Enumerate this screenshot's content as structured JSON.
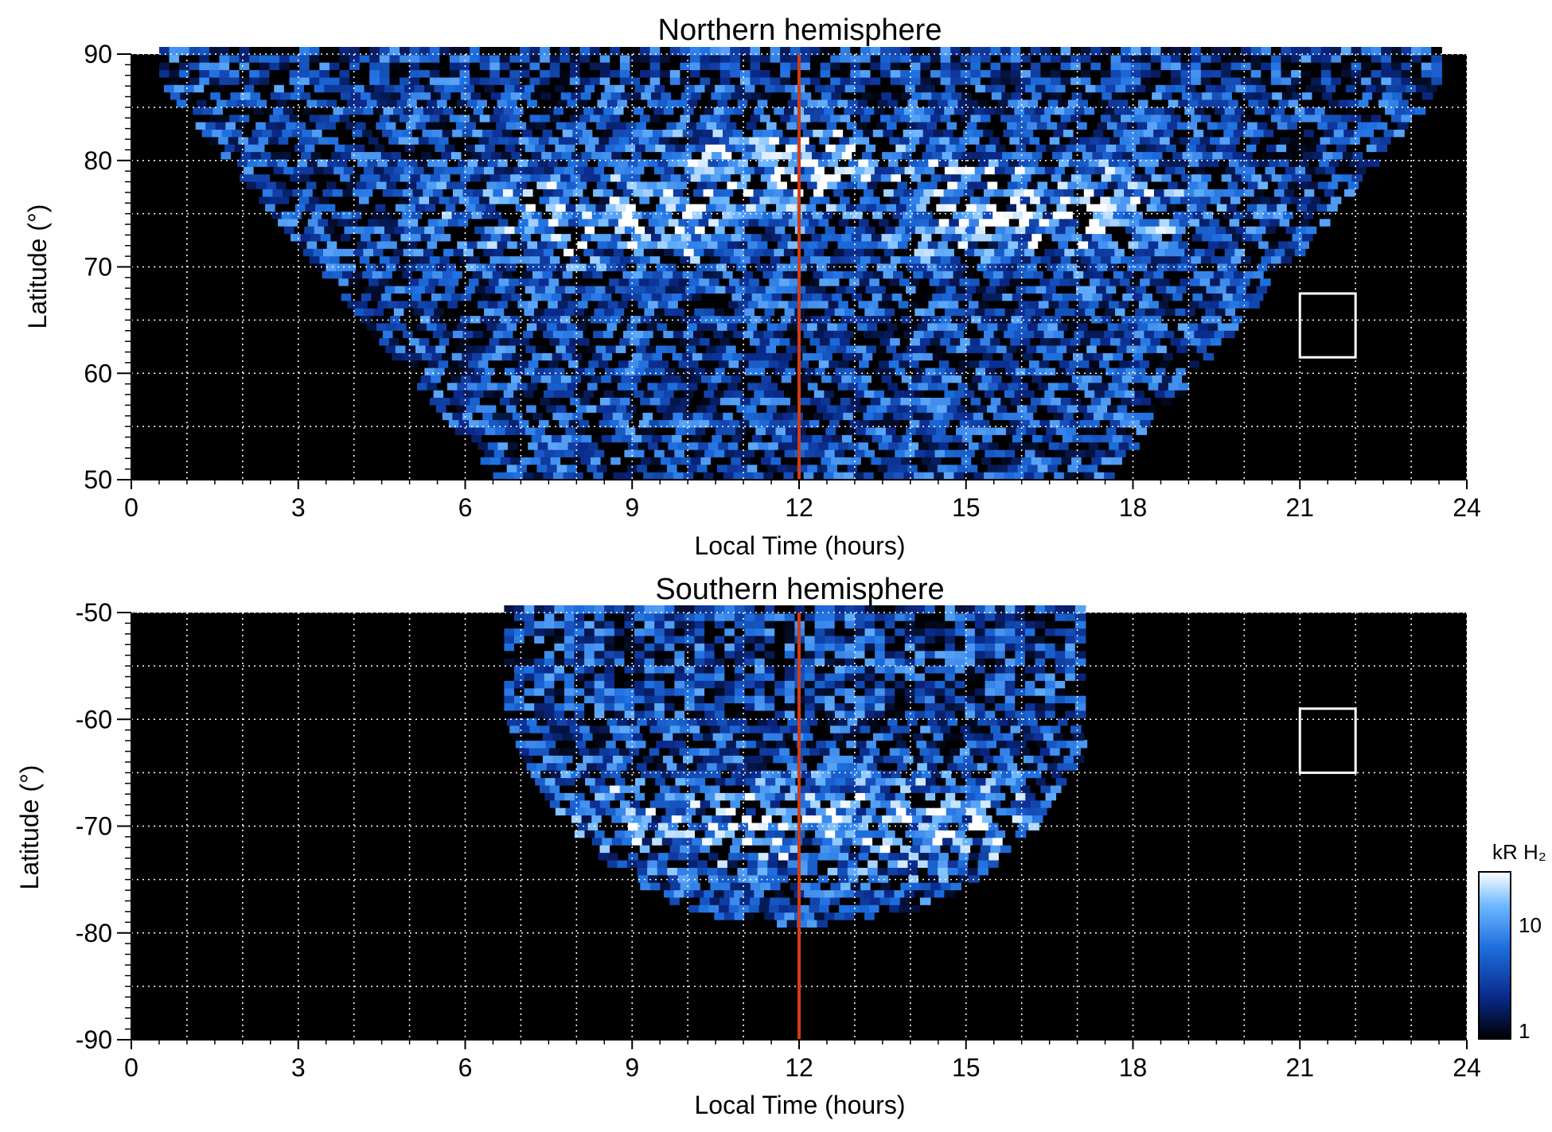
{
  "chart_data": [
    {
      "type": "heatmap",
      "title": "Northern hemisphere",
      "xlabel": "Local Time (hours)",
      "ylabel": "Latitude (°)",
      "xlim": [
        0,
        24
      ],
      "ylim": [
        50,
        90
      ],
      "x_ticks": [
        0,
        3,
        6,
        9,
        12,
        15,
        18,
        21,
        24
      ],
      "y_ticks": [
        50,
        60,
        70,
        80,
        90
      ],
      "grid": true,
      "colormap": [
        "#000000",
        "#0a2a8a",
        "#1e6fe0",
        "#6fb8ff",
        "#ffffff"
      ],
      "noon_line": {
        "x": 12,
        "color": "#d23c14"
      },
      "highlight_box": {
        "x": [
          21,
          22
        ],
        "lat": [
          61.5,
          67.5
        ],
        "color": "#ffffff"
      },
      "coverage_lt": [
        0.5,
        23.5
      ],
      "bright_bands": [
        {
          "lt_center": 8.5,
          "lat_center": 74,
          "strength": 0.8
        },
        {
          "lt_center": 12.0,
          "lat_center": 79,
          "strength": 0.8
        },
        {
          "lt_center": 16.2,
          "lat_center": 75,
          "strength": 1.0
        }
      ]
    },
    {
      "type": "heatmap",
      "title": "Southern hemisphere",
      "xlabel": "Local Time (hours)",
      "ylabel": "Latitude (°)",
      "xlim": [
        0,
        24
      ],
      "ylim": [
        -90,
        -50
      ],
      "x_ticks": [
        0,
        3,
        6,
        9,
        12,
        15,
        18,
        21,
        24
      ],
      "y_ticks": [
        -90,
        -80,
        -70,
        -60,
        -50
      ],
      "grid": true,
      "colormap": [
        "#000000",
        "#0a2a8a",
        "#1e6fe0",
        "#6fb8ff",
        "#ffffff"
      ],
      "noon_line": {
        "x": 12,
        "color": "#d23c14"
      },
      "highlight_box": {
        "x": [
          21,
          22
        ],
        "lat": [
          -65,
          -59
        ],
        "color": "#ffffff"
      },
      "coverage_lt": [
        6.7,
        17.0
      ],
      "bright_bands": [
        {
          "lt_center": 10.0,
          "lat_center": -70,
          "strength": 0.7
        },
        {
          "lt_center": 14.0,
          "lat_center": -70,
          "strength": 0.7
        }
      ]
    }
  ],
  "colorbar": {
    "label": "kR H₂",
    "ticks": [
      "1",
      "10"
    ],
    "scale": "log"
  }
}
